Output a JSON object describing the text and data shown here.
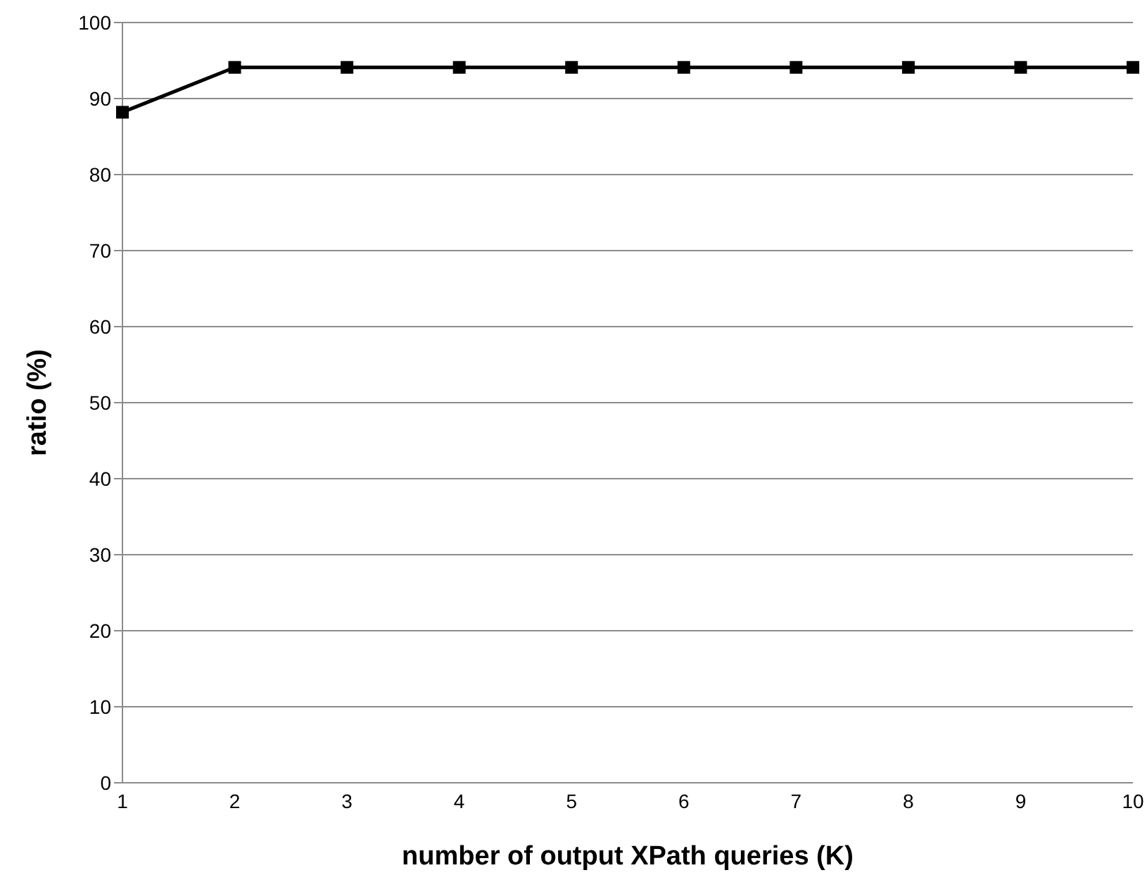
{
  "chart_data": {
    "type": "line",
    "xlabel": "number of output XPath queries (K)",
    "ylabel": "ratio (%)",
    "categories": [
      "1",
      "2",
      "3",
      "4",
      "5",
      "6",
      "7",
      "8",
      "9",
      "10"
    ],
    "series": [
      {
        "color": "#000000",
        "values": [
          88.2,
          94.1,
          94.1,
          94.1,
          94.1,
          94.1,
          94.1,
          94.1,
          94.1,
          94.1
        ]
      }
    ],
    "ylim": [
      0,
      100
    ],
    "yticks": [
      0,
      10,
      20,
      30,
      40,
      50,
      60,
      70,
      80,
      90,
      100
    ],
    "grid": "y",
    "marker": "square",
    "line_style": "solid",
    "legend": false
  }
}
